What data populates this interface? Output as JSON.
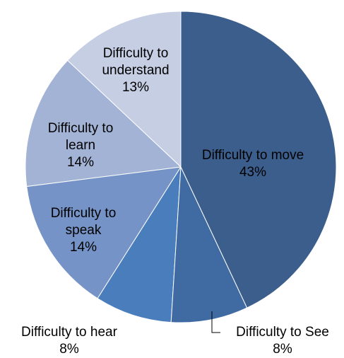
{
  "chart_data": {
    "type": "pie",
    "categories": [
      "Difficulty to move",
      "Difficulty to See",
      "Difficulty to hear",
      "Difficulty to speak",
      "Difficulty to learn",
      "Difficulty to understand"
    ],
    "values": [
      43,
      8,
      8,
      14,
      14,
      13
    ],
    "value_labels": [
      "43%",
      "8%",
      "8%",
      "14%",
      "14%",
      "13%"
    ],
    "colors": [
      "#3b5e8c",
      "#3f6aa2",
      "#4a7dbb",
      "#7593c6",
      "#a2b3d6",
      "#c6cee4"
    ]
  }
}
